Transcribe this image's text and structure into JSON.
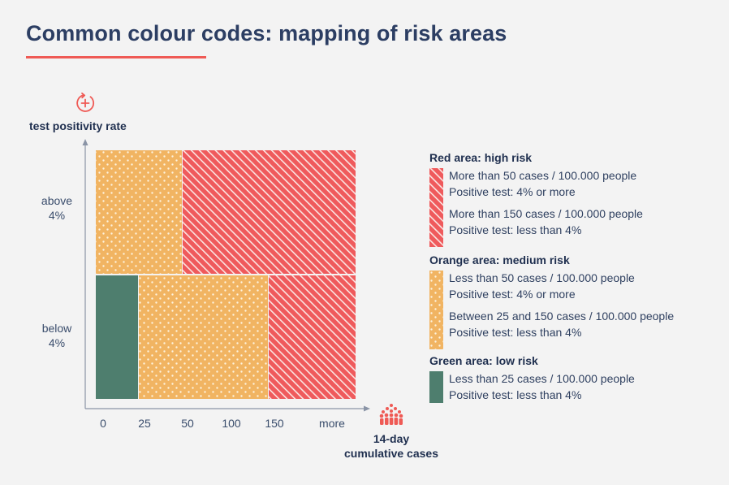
{
  "title": "Common colour codes: mapping of risk areas",
  "colors": {
    "red": "#ef5a5c",
    "orange": "#f1b462",
    "green": "#4e7e6e",
    "accent": "#ef5a55",
    "axis": "#8a94a6"
  },
  "icons": {
    "y_axis": "circular-plus-arrow-icon",
    "x_axis": "people-crowd-icon"
  },
  "chart_data": {
    "type": "heatmap",
    "xlabel": "14-day\ncumulative cases",
    "ylabel": "test positivity rate",
    "x_ticks": [
      "0",
      "25",
      "50",
      "100",
      "150",
      "more"
    ],
    "y_ticks": [
      "below\n4%",
      "above\n4%"
    ],
    "regions": [
      {
        "risk": "medium",
        "color": "orange",
        "pattern": "dots",
        "positivity": "above 4%",
        "cases_from": "0",
        "cases_to": "50"
      },
      {
        "risk": "high",
        "color": "red",
        "pattern": "stripes",
        "positivity": "above 4%",
        "cases_from": "50",
        "cases_to": "more"
      },
      {
        "risk": "low",
        "color": "green",
        "pattern": "solid",
        "positivity": "below 4%",
        "cases_from": "0",
        "cases_to": "25"
      },
      {
        "risk": "medium",
        "color": "orange",
        "pattern": "dots",
        "positivity": "below 4%",
        "cases_from": "25",
        "cases_to": "150"
      },
      {
        "risk": "high",
        "color": "red",
        "pattern": "stripes",
        "positivity": "below 4%",
        "cases_from": "150",
        "cases_to": "more"
      }
    ]
  },
  "legend": [
    {
      "heading": "Red area: high risk",
      "color": "red",
      "pattern": "stripes",
      "items": [
        [
          "More than 50 cases / 100.000 people",
          "Positive test: 4% or more"
        ],
        [
          "More than 150 cases / 100.000 people",
          "Positive test: less than 4%"
        ]
      ]
    },
    {
      "heading": "Orange area: medium risk",
      "color": "orange",
      "pattern": "dots",
      "items": [
        [
          "Less than 50 cases / 100.000 people",
          "Positive test: 4% or more"
        ],
        [
          "Between 25 and 150 cases / 100.000 people",
          "Positive test: less than 4%"
        ]
      ]
    },
    {
      "heading": "Green area: low risk",
      "color": "green",
      "pattern": "solid",
      "items": [
        [
          "Less than 25 cases / 100.000 people",
          "Positive test: less than 4%"
        ]
      ]
    }
  ]
}
